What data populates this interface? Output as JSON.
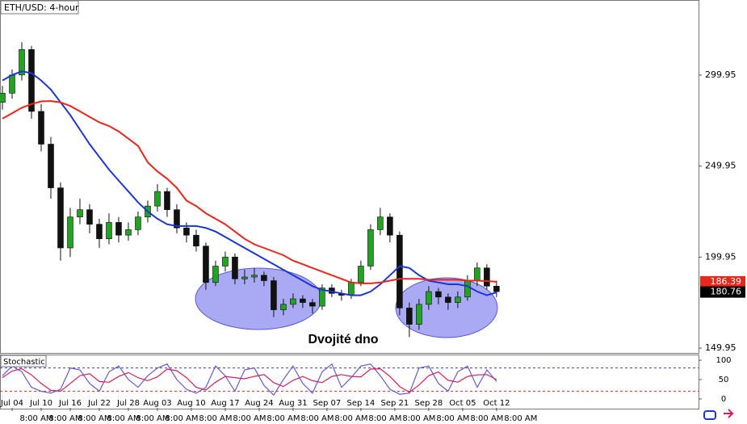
{
  "chart_data": {
    "type": "candlestick",
    "title": "ETH/USD: 4-hour",
    "annotation": "Dvojité dno",
    "x": [
      1,
      3,
      5,
      7,
      9,
      11,
      13,
      15,
      17,
      19,
      21,
      23,
      25,
      27,
      29,
      31,
      33,
      35,
      37,
      39,
      41,
      43,
      45,
      47,
      49,
      51,
      53,
      55,
      57,
      59,
      61,
      63,
      65,
      67,
      69,
      71,
      73,
      75,
      77,
      79,
      81,
      83,
      85,
      87,
      89,
      91,
      93,
      95,
      97,
      99,
      101,
      103
    ],
    "xlim": [
      0.5,
      144.7
    ],
    "xticks": [
      {
        "value": 3,
        "label": "Jul 04"
      },
      {
        "value": 9,
        "label": "Jul 10"
      },
      {
        "value": 15,
        "label": "Jul 16"
      },
      {
        "value": 21,
        "label": "Jul 22"
      },
      {
        "value": 27,
        "label": "Jul 28"
      },
      {
        "value": 33,
        "label": "Aug 03"
      },
      {
        "value": 40,
        "label": "Aug 10"
      },
      {
        "value": 47,
        "label": "Aug 17"
      },
      {
        "value": 54,
        "label": "Aug 24"
      },
      {
        "value": 61,
        "label": "Aug 31"
      },
      {
        "value": 68,
        "label": "Sep 07"
      },
      {
        "value": 75,
        "label": "Sep 14"
      },
      {
        "value": 82,
        "label": "Sep 21"
      },
      {
        "value": 89,
        "label": "Sep 28"
      },
      {
        "value": 96,
        "label": "Oct 05"
      },
      {
        "value": 103,
        "label": "Oct 12"
      }
    ],
    "time_labels": [
      "8:00 AM",
      "8:00 AM",
      "8:00 AM",
      "8:00 AM",
      "8:00 AM",
      "8:00 AM",
      "8:00 AM",
      "8:00 AM",
      "8:00 AM",
      "8:00 AM",
      "8:00 AM",
      "8:00 AM",
      "8:00 AM",
      "8:00 AM",
      "8:00 AM",
      "8:00 AM"
    ],
    "ylim": [
      147.3,
      341.2
    ],
    "yticks": [
      149.95,
      199.95,
      249.95,
      299.95
    ],
    "up_color": "#22a322",
    "down_color": "#111111",
    "ohlc": [
      [
        285,
        294,
        281,
        290
      ],
      [
        290,
        303,
        287,
        300
      ],
      [
        300,
        318,
        297,
        314
      ],
      [
        314,
        316,
        276,
        280
      ],
      [
        280,
        284,
        258,
        262
      ],
      [
        262,
        266,
        232,
        238
      ],
      [
        238,
        241,
        198,
        205
      ],
      [
        205,
        227,
        200,
        222
      ],
      [
        222,
        232,
        218,
        226
      ],
      [
        226,
        229,
        213,
        218
      ],
      [
        218,
        221,
        205,
        210
      ],
      [
        210,
        224,
        207,
        219
      ],
      [
        219,
        222,
        208,
        212
      ],
      [
        212,
        219,
        209,
        215
      ],
      [
        215,
        225,
        212,
        222
      ],
      [
        222,
        231,
        219,
        228
      ],
      [
        228,
        240,
        225,
        236
      ],
      [
        236,
        238,
        222,
        226
      ],
      [
        226,
        229,
        213,
        216
      ],
      [
        216,
        219,
        208,
        212
      ],
      [
        212,
        215,
        203,
        206
      ],
      [
        206,
        208,
        182,
        186
      ],
      [
        186,
        198,
        184,
        195
      ],
      [
        195,
        203,
        192,
        200
      ],
      [
        200,
        202,
        185,
        188
      ],
      [
        188,
        193,
        185,
        189
      ],
      [
        189,
        194,
        186,
        190
      ],
      [
        190,
        192,
        184,
        187
      ],
      [
        187,
        189,
        167,
        171
      ],
      [
        171,
        177,
        168,
        174
      ],
      [
        174,
        180,
        172,
        177
      ],
      [
        177,
        179,
        172,
        175
      ],
      [
        175,
        177,
        169,
        173
      ],
      [
        173,
        185,
        171,
        183
      ],
      [
        183,
        185,
        178,
        180
      ],
      [
        180,
        182,
        176,
        179
      ],
      [
        179,
        188,
        177,
        186
      ],
      [
        186,
        198,
        184,
        195
      ],
      [
        195,
        218,
        193,
        215
      ],
      [
        215,
        227,
        212,
        222
      ],
      [
        222,
        224,
        208,
        212
      ],
      [
        212,
        214,
        168,
        172
      ],
      [
        172,
        175,
        156,
        163
      ],
      [
        163,
        177,
        160,
        174
      ],
      [
        174,
        184,
        171,
        181
      ],
      [
        181,
        183,
        174,
        178
      ],
      [
        178,
        180,
        171,
        175
      ],
      [
        175,
        181,
        172,
        178
      ],
      [
        178,
        190,
        176,
        187
      ],
      [
        187,
        197,
        184,
        194
      ],
      [
        194,
        196,
        182,
        184
      ],
      [
        184,
        187,
        178,
        181
      ]
    ],
    "series": [
      {
        "color": "#1c35d6",
        "values": [
          297,
          300,
          302,
          301,
          297,
          292,
          285,
          278,
          270,
          262,
          255,
          248,
          242,
          236,
          230,
          225,
          221,
          218,
          217,
          217,
          217,
          216,
          214,
          211,
          208,
          205,
          202,
          199,
          196,
          193,
          190,
          187,
          184,
          182,
          181,
          180,
          179,
          179,
          181,
          185,
          190,
          195,
          194,
          190,
          187,
          186,
          185,
          185,
          184,
          181,
          179,
          180.6
        ]
      },
      {
        "color": "#e8261c",
        "values": [
          276,
          279,
          282,
          284,
          285.5,
          285.7,
          285,
          283,
          280,
          277,
          274,
          272,
          269,
          265,
          261,
          252,
          247,
          243,
          238,
          231,
          228,
          224,
          221,
          218,
          214,
          210,
          207,
          205,
          203,
          201,
          198,
          196,
          194,
          192,
          190,
          188,
          186,
          185.5,
          185.5,
          186,
          187,
          188,
          188,
          188,
          187.5,
          187.5,
          187.5,
          187.5,
          187,
          187,
          186.8,
          186.39
        ]
      }
    ],
    "last_labels": [
      {
        "value": 186.39,
        "color": "#e8261c"
      },
      {
        "value": 180.76,
        "color": "#000000"
      }
    ],
    "indicator": {
      "type": "line",
      "title": "Stochastic",
      "ylim": [
        -23,
        114.6
      ],
      "yticks": [
        0,
        50,
        100
      ],
      "levels": [
        {
          "value": 80,
          "color": "#3a3ad0"
        },
        {
          "value": 20,
          "color": "#e8261c"
        }
      ],
      "series": [
        {
          "color": "#6a5acd",
          "values": [
            60,
            85,
            70,
            30,
            20,
            15,
            25,
            80,
            75,
            40,
            20,
            70,
            85,
            50,
            30,
            60,
            80,
            90,
            50,
            25,
            15,
            30,
            85,
            60,
            20,
            75,
            80,
            35,
            10,
            50,
            85,
            40,
            15,
            70,
            90,
            30,
            55,
            85,
            90,
            60,
            25,
            12,
            15,
            80,
            85,
            40,
            20,
            70,
            85,
            30,
            75,
            45
          ]
        },
        {
          "color": "#d0205a",
          "values": [
            55,
            72,
            78,
            62,
            40,
            22,
            20,
            40,
            60,
            65,
            45,
            43,
            58,
            68,
            55,
            47,
            57,
            77,
            73,
            55,
            30,
            23,
            43,
            58,
            55,
            52,
            58,
            63,
            42,
            32,
            48,
            58,
            47,
            42,
            58,
            63,
            58,
            57,
            77,
            78,
            58,
            32,
            17,
            36,
            60,
            70,
            48,
            43,
            58,
            62,
            63,
            50
          ]
        }
      ]
    }
  }
}
